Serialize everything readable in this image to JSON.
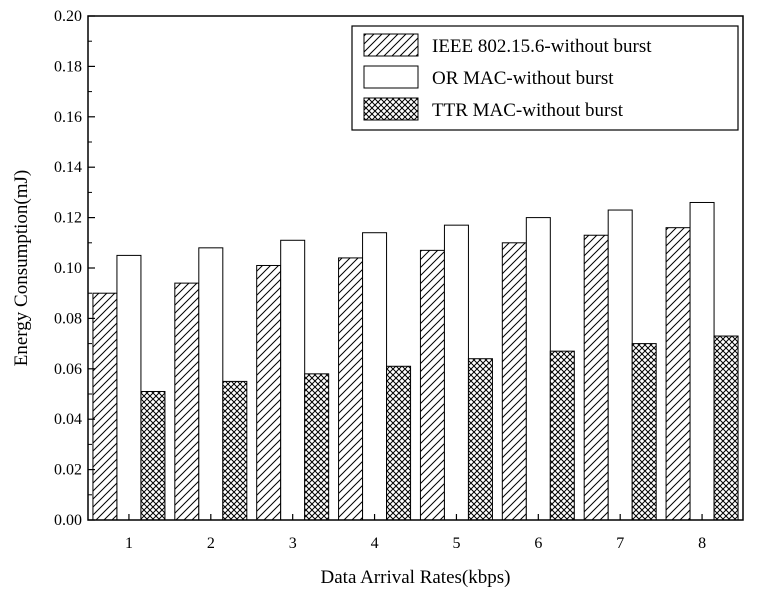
{
  "chart_data": {
    "type": "bar",
    "title": "",
    "xlabel": "Data Arrival Rates(kbps)",
    "ylabel": "Energy Consumption(mJ)",
    "ylim": [
      0,
      0.2
    ],
    "y_ticks": [
      "0.00",
      "0.02",
      "0.04",
      "0.06",
      "0.08",
      "0.10",
      "0.12",
      "0.14",
      "0.16",
      "0.18",
      "0.20"
    ],
    "categories": [
      "1",
      "2",
      "3",
      "4",
      "5",
      "6",
      "7",
      "8"
    ],
    "legend_position": "top-right",
    "grid": false,
    "series": [
      {
        "name": "IEEE 802.15.6-without burst",
        "pattern": "diagonal-hatch",
        "values": [
          0.09,
          0.094,
          0.101,
          0.104,
          0.107,
          0.11,
          0.113,
          0.116
        ]
      },
      {
        "name": "OR MAC-without burst",
        "pattern": "empty",
        "values": [
          0.105,
          0.108,
          0.111,
          0.114,
          0.117,
          0.12,
          0.123,
          0.126
        ]
      },
      {
        "name": "TTR MAC-without burst",
        "pattern": "cross-hatch",
        "values": [
          0.051,
          0.055,
          0.058,
          0.061,
          0.064,
          0.067,
          0.07,
          0.073
        ]
      }
    ]
  }
}
